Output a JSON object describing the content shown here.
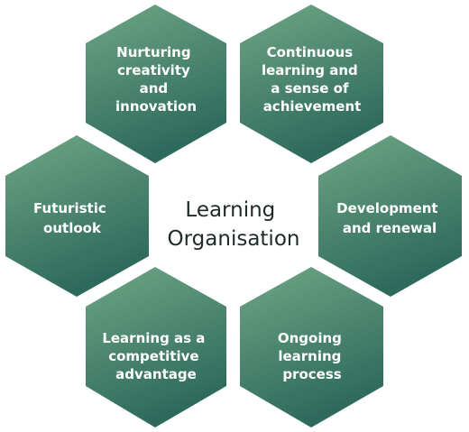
{
  "center": {
    "title_lines": [
      "Learning",
      "Organisation"
    ]
  },
  "hexagons": [
    {
      "id": "nurturing-creativity",
      "lines": [
        "Nurturing",
        "creativity",
        "and",
        "innovation"
      ]
    },
    {
      "id": "continuous-learning",
      "lines": [
        "Continuous",
        "learning and",
        "a sense of",
        "achievement"
      ]
    },
    {
      "id": "development-renewal",
      "lines": [
        "Development",
        "and renewal"
      ]
    },
    {
      "id": "ongoing-learning",
      "lines": [
        "Ongoing",
        "learning",
        "process"
      ]
    },
    {
      "id": "competitive-advantage",
      "lines": [
        "Learning as a",
        "competitive",
        "advantage"
      ]
    },
    {
      "id": "futuristic-outlook",
      "lines": [
        "Futuristic",
        "outlook"
      ]
    }
  ],
  "colors": {
    "hex_light": "#6fa686",
    "hex_dark": "#2e6a5c",
    "text_on_hex": "#ffffff",
    "center_text": "#1f2a2a"
  }
}
